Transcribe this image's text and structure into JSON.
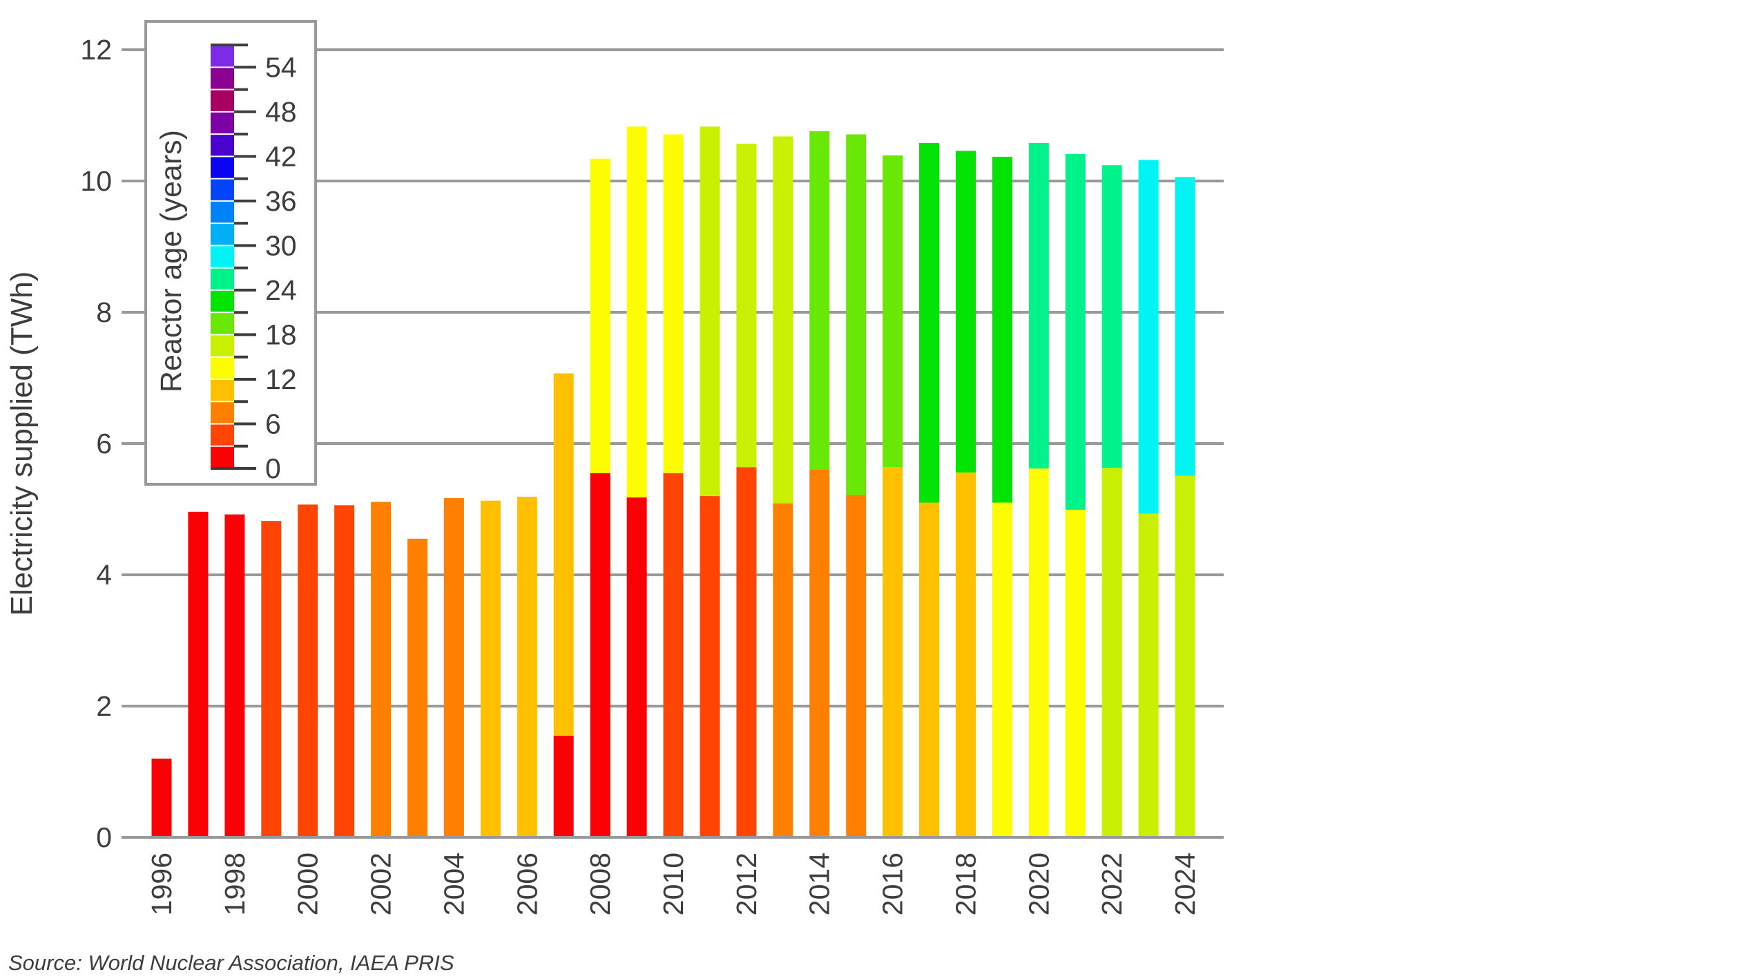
{
  "source_note": "Source: World Nuclear Association, IAEA PRIS",
  "colors": {
    "background": "#FFFFFF",
    "grid": "#999999",
    "legend_border": "#999999",
    "legend_tick": "#3D3D3D",
    "text": "#3D3D3D"
  },
  "chart_data": {
    "type": "bar",
    "stacked": true,
    "title": "",
    "xlabel": "",
    "ylabel": "Electricity supplied (TWh)",
    "ylim": [
      0,
      12
    ],
    "yticks": [
      0,
      2,
      4,
      6,
      8,
      10,
      12
    ],
    "grid": "horizontal-only",
    "x_label_every_years": 2,
    "legend": {
      "title": "Reactor age (years)",
      "position": "top-left-inside",
      "labeled_ticks": [
        0,
        6,
        12,
        18,
        24,
        30,
        36,
        42,
        48,
        54
      ],
      "minor_ticks": [
        3,
        9,
        15,
        21,
        27,
        33,
        39,
        45,
        51,
        57
      ],
      "bucket_span_years": 3,
      "buckets": [
        {
          "range": "0-3",
          "color": "#FB0004"
        },
        {
          "range": "3-6",
          "color": "#FF4404"
        },
        {
          "range": "6-9",
          "color": "#FF8000"
        },
        {
          "range": "9-12",
          "color": "#FFC000"
        },
        {
          "range": "12-15",
          "color": "#FDFD00"
        },
        {
          "range": "15-18",
          "color": "#C9F002"
        },
        {
          "range": "18-21",
          "color": "#69E705"
        },
        {
          "range": "21-24",
          "color": "#03E404"
        },
        {
          "range": "24-27",
          "color": "#00F28A"
        },
        {
          "range": "27-30",
          "color": "#00F4F4"
        },
        {
          "range": "30-33",
          "color": "#00AFF6"
        },
        {
          "range": "33-36",
          "color": "#0081FF"
        },
        {
          "range": "36-39",
          "color": "#0444FA"
        },
        {
          "range": "39-42",
          "color": "#0B04F2"
        },
        {
          "range": "42-45",
          "color": "#4A02CF"
        },
        {
          "range": "45-48",
          "color": "#7E01A8"
        },
        {
          "range": "48-51",
          "color": "#A80061"
        },
        {
          "range": "51-54",
          "color": "#8B0190"
        },
        {
          "range": "54-57",
          "color": "#7D2BE8"
        }
      ]
    },
    "bars": [
      {
        "year": 1996,
        "segments": [
          {
            "age_bucket": "0-3",
            "twh": 1.2
          }
        ]
      },
      {
        "year": 1997,
        "segments": [
          {
            "age_bucket": "0-3",
            "twh": 4.96
          }
        ]
      },
      {
        "year": 1998,
        "segments": [
          {
            "age_bucket": "0-3",
            "twh": 4.92
          }
        ]
      },
      {
        "year": 1999,
        "segments": [
          {
            "age_bucket": "3-6",
            "twh": 4.82
          }
        ]
      },
      {
        "year": 2000,
        "segments": [
          {
            "age_bucket": "3-6",
            "twh": 5.07
          }
        ]
      },
      {
        "year": 2001,
        "segments": [
          {
            "age_bucket": "3-6",
            "twh": 5.06
          }
        ]
      },
      {
        "year": 2002,
        "segments": [
          {
            "age_bucket": "6-9",
            "twh": 5.11
          }
        ]
      },
      {
        "year": 2003,
        "segments": [
          {
            "age_bucket": "6-9",
            "twh": 4.55
          }
        ]
      },
      {
        "year": 2004,
        "segments": [
          {
            "age_bucket": "6-9",
            "twh": 5.17
          }
        ]
      },
      {
        "year": 2005,
        "segments": [
          {
            "age_bucket": "9-12",
            "twh": 5.13
          }
        ]
      },
      {
        "year": 2006,
        "segments": [
          {
            "age_bucket": "9-12",
            "twh": 5.19
          }
        ]
      },
      {
        "year": 2007,
        "segments": [
          {
            "age_bucket": "0-3",
            "twh": 1.55
          },
          {
            "age_bucket": "9-12",
            "twh": 5.52
          }
        ]
      },
      {
        "year": 2008,
        "segments": [
          {
            "age_bucket": "0-3",
            "twh": 5.55
          },
          {
            "age_bucket": "12-15",
            "twh": 4.79
          }
        ]
      },
      {
        "year": 2009,
        "segments": [
          {
            "age_bucket": "0-3",
            "twh": 5.18
          },
          {
            "age_bucket": "12-15",
            "twh": 5.65
          }
        ]
      },
      {
        "year": 2010,
        "segments": [
          {
            "age_bucket": "3-6",
            "twh": 5.55
          },
          {
            "age_bucket": "12-15",
            "twh": 5.16
          }
        ]
      },
      {
        "year": 2011,
        "segments": [
          {
            "age_bucket": "3-6",
            "twh": 5.2
          },
          {
            "age_bucket": "15-18",
            "twh": 5.63
          }
        ]
      },
      {
        "year": 2012,
        "segments": [
          {
            "age_bucket": "3-6",
            "twh": 5.64
          },
          {
            "age_bucket": "15-18",
            "twh": 4.93
          }
        ]
      },
      {
        "year": 2013,
        "segments": [
          {
            "age_bucket": "6-9",
            "twh": 5.09
          },
          {
            "age_bucket": "15-18",
            "twh": 5.59
          }
        ]
      },
      {
        "year": 2014,
        "segments": [
          {
            "age_bucket": "6-9",
            "twh": 5.6
          },
          {
            "age_bucket": "18-21",
            "twh": 5.16
          }
        ]
      },
      {
        "year": 2015,
        "segments": [
          {
            "age_bucket": "6-9",
            "twh": 5.22
          },
          {
            "age_bucket": "18-21",
            "twh": 5.49
          }
        ]
      },
      {
        "year": 2016,
        "segments": [
          {
            "age_bucket": "9-12",
            "twh": 5.64
          },
          {
            "age_bucket": "18-21",
            "twh": 4.75
          }
        ]
      },
      {
        "year": 2017,
        "segments": [
          {
            "age_bucket": "9-12",
            "twh": 5.1
          },
          {
            "age_bucket": "21-24",
            "twh": 5.48
          }
        ]
      },
      {
        "year": 2018,
        "segments": [
          {
            "age_bucket": "9-12",
            "twh": 5.56
          },
          {
            "age_bucket": "21-24",
            "twh": 4.9
          }
        ]
      },
      {
        "year": 2019,
        "segments": [
          {
            "age_bucket": "12-15",
            "twh": 5.1
          },
          {
            "age_bucket": "21-24",
            "twh": 5.27
          }
        ]
      },
      {
        "year": 2020,
        "segments": [
          {
            "age_bucket": "12-15",
            "twh": 5.62
          },
          {
            "age_bucket": "24-27",
            "twh": 4.96
          }
        ]
      },
      {
        "year": 2021,
        "segments": [
          {
            "age_bucket": "12-15",
            "twh": 4.99
          },
          {
            "age_bucket": "24-27",
            "twh": 5.42
          }
        ]
      },
      {
        "year": 2022,
        "segments": [
          {
            "age_bucket": "15-18",
            "twh": 5.63
          },
          {
            "age_bucket": "24-27",
            "twh": 4.61
          }
        ]
      },
      {
        "year": 2023,
        "segments": [
          {
            "age_bucket": "15-18",
            "twh": 4.93
          },
          {
            "age_bucket": "27-30",
            "twh": 5.39
          }
        ]
      },
      {
        "year": 2024,
        "segments": [
          {
            "age_bucket": "15-18",
            "twh": 5.51
          },
          {
            "age_bucket": "27-30",
            "twh": 4.55
          }
        ]
      }
    ]
  }
}
